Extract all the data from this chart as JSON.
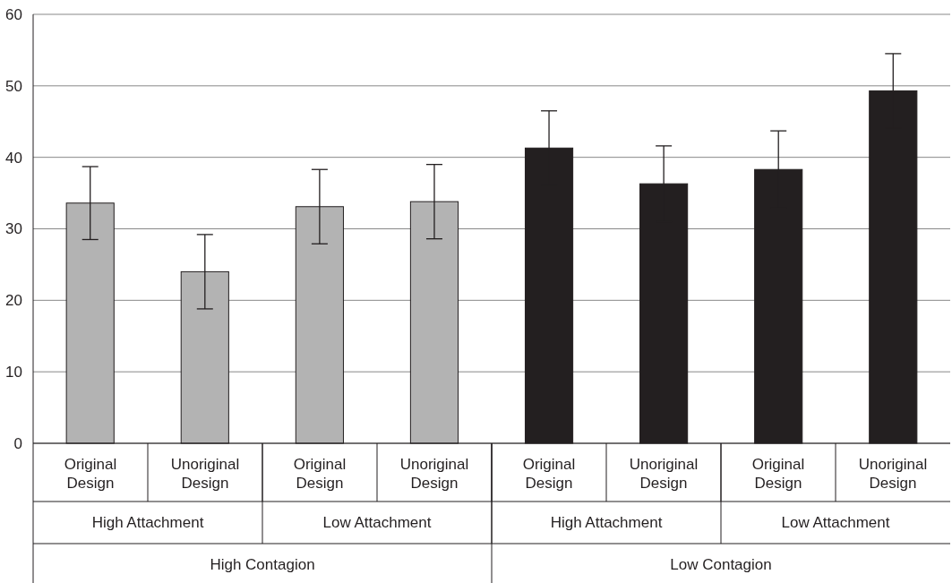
{
  "chart_data": {
    "type": "bar",
    "categories": [
      "Original Design",
      "Unoriginal Design",
      "Original Design",
      "Unoriginal Design",
      "Original Design",
      "Unoriginal Design",
      "Original Design",
      "Unoriginal Design"
    ],
    "values": [
      33.6,
      24.0,
      33.1,
      33.8,
      41.3,
      36.3,
      38.3,
      49.3
    ],
    "errors": [
      5.1,
      5.2,
      5.2,
      5.2,
      5.2,
      5.3,
      5.4,
      5.2
    ],
    "colors": [
      "#b3b3b3",
      "#b3b3b3",
      "#b3b3b3",
      "#b3b3b3",
      "#231f20",
      "#231f20",
      "#231f20",
      "#231f20"
    ],
    "annotations": [
      "High Attachment",
      "Low Attachment",
      "High Attachment",
      "Low Attachment",
      "High Contagion",
      "Low Contagion"
    ],
    "ylim": [
      0,
      60
    ],
    "yticks": [
      0,
      10,
      20,
      30,
      40,
      50,
      60
    ],
    "grid": "y"
  }
}
